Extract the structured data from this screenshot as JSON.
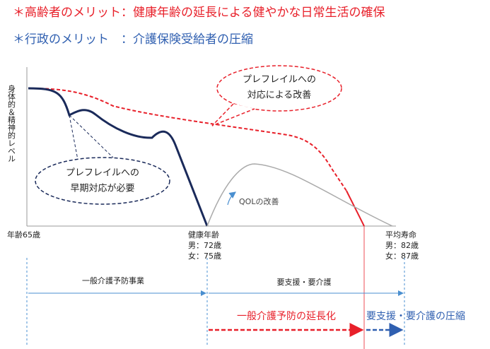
{
  "header": {
    "line1": "＊高齢者のメリット：健康年齢の延長による健やかな日常生活の確保",
    "line2": "＊行政のメリット　：介護保険受給者の圧縮"
  },
  "diagram": {
    "y_axis_label": "身体的＆精神的レベル",
    "callout_top": {
      "lines": [
        "プレフレイルへの",
        "対応による改善"
      ]
    },
    "callout_bottom": {
      "lines": [
        "プレフレイルへの",
        "早期対応が必要"
      ]
    },
    "qol_label": "QOLの改善",
    "x_labels": {
      "start": "年齢65歳",
      "healthy": [
        "健康年齢",
        "男：72歳",
        "女：75歳"
      ],
      "life": [
        "平均寿命",
        "男：82歳",
        "女：87歳"
      ]
    },
    "periods": {
      "left": "一般介護予防事業",
      "right": "要支援・要介護"
    },
    "bottom": {
      "extend": "一般介護予防の延長化",
      "compress": "要支援・要介護の圧縮"
    }
  }
}
